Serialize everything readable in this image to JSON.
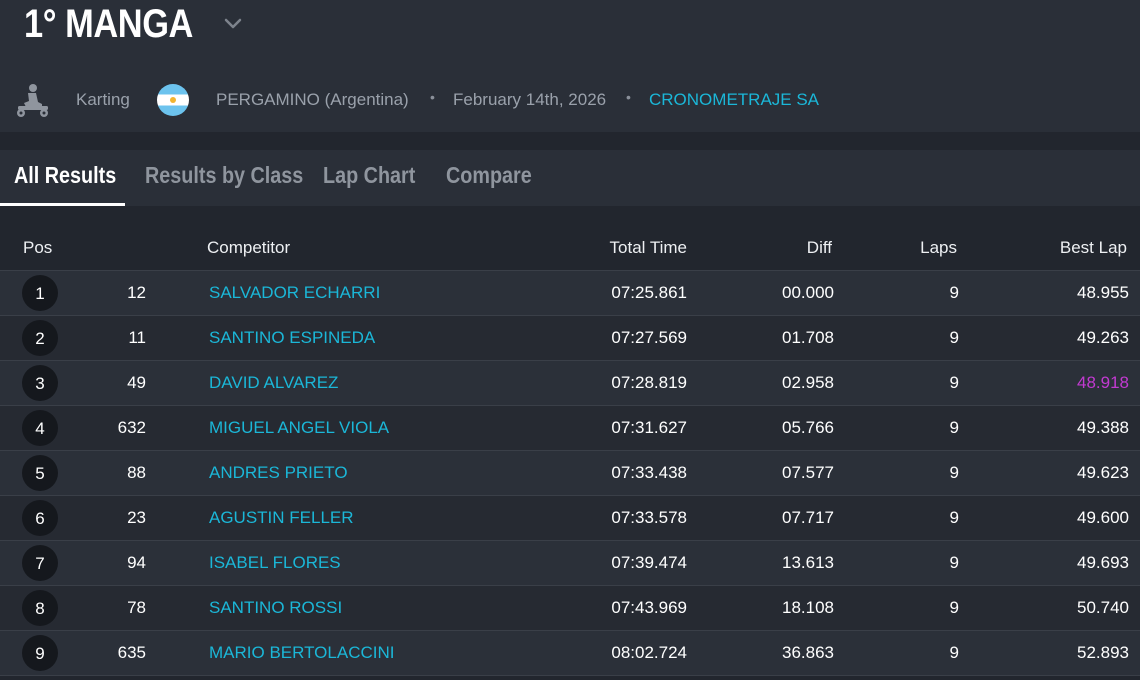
{
  "event": {
    "title": "1° MANGA",
    "sport": "Karting",
    "location": "PERGAMINO (Argentina)",
    "date": "February 14th, 2026",
    "organizer": "CRONOMETRAJE SA",
    "separator": "•"
  },
  "icons": {
    "sport": "kart-icon",
    "flag": "argentina-flag-icon",
    "title_menu": "chevron-down-icon"
  },
  "colors": {
    "accent": "#1bb7d8",
    "fastest_lap": "#c23ad1",
    "background": "#22262e",
    "header": "#2a2f38"
  },
  "tabs": [
    {
      "label": "All Results",
      "active": true
    },
    {
      "label": "Results by Class",
      "active": false
    },
    {
      "label": "Lap Chart",
      "active": false
    },
    {
      "label": "Compare",
      "active": false
    }
  ],
  "table": {
    "columns": {
      "pos": "Pos",
      "competitor": "Competitor",
      "total_time": "Total Time",
      "diff": "Diff",
      "laps": "Laps",
      "best_lap": "Best Lap"
    },
    "rows": [
      {
        "pos": "1",
        "number": "12",
        "competitor": "SALVADOR ECHARRI",
        "total_time": "07:25.861",
        "diff": "00.000",
        "laps": "9",
        "best_lap": "48.955",
        "fastest": false
      },
      {
        "pos": "2",
        "number": "11",
        "competitor": "SANTINO ESPINEDA",
        "total_time": "07:27.569",
        "diff": "01.708",
        "laps": "9",
        "best_lap": "49.263",
        "fastest": false
      },
      {
        "pos": "3",
        "number": "49",
        "competitor": "DAVID ALVAREZ",
        "total_time": "07:28.819",
        "diff": "02.958",
        "laps": "9",
        "best_lap": "48.918",
        "fastest": true
      },
      {
        "pos": "4",
        "number": "632",
        "competitor": "MIGUEL ANGEL VIOLA",
        "total_time": "07:31.627",
        "diff": "05.766",
        "laps": "9",
        "best_lap": "49.388",
        "fastest": false
      },
      {
        "pos": "5",
        "number": "88",
        "competitor": "ANDRES PRIETO",
        "total_time": "07:33.438",
        "diff": "07.577",
        "laps": "9",
        "best_lap": "49.623",
        "fastest": false
      },
      {
        "pos": "6",
        "number": "23",
        "competitor": "AGUSTIN FELLER",
        "total_time": "07:33.578",
        "diff": "07.717",
        "laps": "9",
        "best_lap": "49.600",
        "fastest": false
      },
      {
        "pos": "7",
        "number": "94",
        "competitor": "ISABEL FLORES",
        "total_time": "07:39.474",
        "diff": "13.613",
        "laps": "9",
        "best_lap": "49.693",
        "fastest": false
      },
      {
        "pos": "8",
        "number": "78",
        "competitor": "SANTINO ROSSI",
        "total_time": "07:43.969",
        "diff": "18.108",
        "laps": "9",
        "best_lap": "50.740",
        "fastest": false
      },
      {
        "pos": "9",
        "number": "635",
        "competitor": "MARIO BERTOLACCINI",
        "total_time": "08:02.724",
        "diff": "36.863",
        "laps": "9",
        "best_lap": "52.893",
        "fastest": false
      }
    ]
  }
}
